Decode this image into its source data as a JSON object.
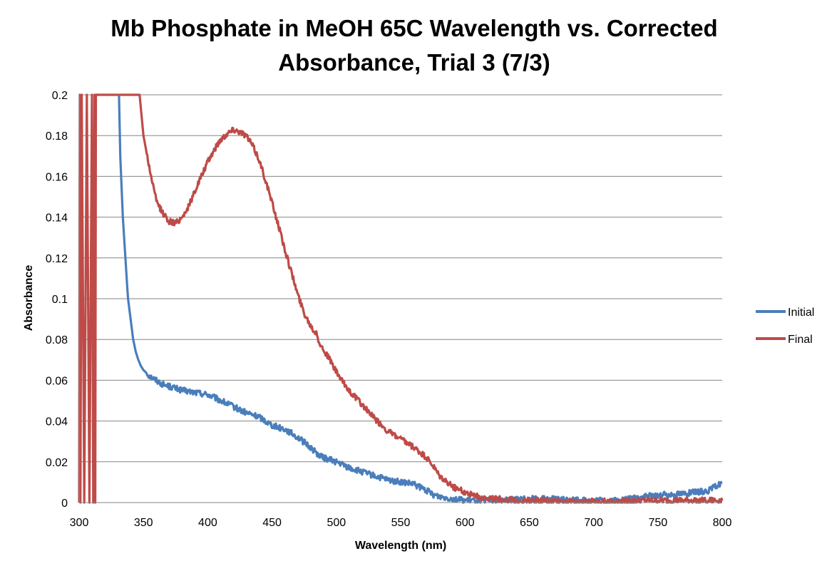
{
  "chart_data": {
    "type": "line",
    "title_lines": [
      "Mb Phosphate in MeOH 65C Wavelength vs. Corrected",
      "Absorbance, Trial 3 (7/3)"
    ],
    "xlabel": "Wavelength (nm)",
    "ylabel": "Absorbance",
    "xlim": [
      300,
      800
    ],
    "ylim": [
      0,
      0.2
    ],
    "x_ticks": [
      300,
      350,
      400,
      450,
      500,
      550,
      600,
      650,
      700,
      750,
      800
    ],
    "x_tick_labels": [
      "300",
      "350",
      "400",
      "450",
      "500",
      "550",
      "600",
      "650",
      "700",
      "750",
      "800"
    ],
    "y_ticks": [
      0,
      0.02,
      0.04,
      0.06,
      0.08,
      0.1,
      0.12,
      0.14,
      0.16,
      0.18,
      0.2
    ],
    "y_tick_labels": [
      "0",
      "0.02",
      "0.04",
      "0.06",
      "0.08",
      "0.1",
      "0.12",
      "0.14",
      "0.16",
      "0.18",
      "0.2"
    ],
    "grid": "horizontal",
    "legend_position": "right",
    "series": [
      {
        "name": "Initial",
        "color": "#4A7EBB",
        "x": [
          331,
          332,
          334,
          336,
          338,
          340,
          342,
          344,
          346,
          348,
          350,
          355,
          360,
          365,
          370,
          375,
          380,
          390,
          400,
          410,
          420,
          430,
          440,
          450,
          460,
          470,
          480,
          487,
          490,
          500,
          510,
          520,
          530,
          540,
          550,
          560,
          570,
          575,
          580,
          590,
          600,
          620,
          650,
          700,
          720,
          740,
          760,
          780,
          790,
          800
        ],
        "y": [
          0.2,
          0.17,
          0.14,
          0.12,
          0.1,
          0.09,
          0.08,
          0.074,
          0.07,
          0.067,
          0.065,
          0.062,
          0.06,
          0.058,
          0.057,
          0.056,
          0.055,
          0.054,
          0.053,
          0.05,
          0.047,
          0.044,
          0.042,
          0.038,
          0.036,
          0.032,
          0.027,
          0.023,
          0.022,
          0.02,
          0.017,
          0.015,
          0.013,
          0.011,
          0.01,
          0.009,
          0.006,
          0.004,
          0.003,
          0.002,
          0.001,
          0.001,
          0.002,
          0.001,
          0.001,
          0.003,
          0.004,
          0.005,
          0.006,
          0.01
        ]
      },
      {
        "name": "Final",
        "color": "#BE4B48",
        "x": [
          300,
          300.5,
          301,
          302,
          304,
          306,
          308,
          310,
          311,
          312,
          312.5,
          313,
          347,
          350,
          355,
          360,
          365,
          370,
          375,
          380,
          385,
          390,
          395,
          400,
          405,
          410,
          415,
          420,
          425,
          430,
          435,
          440,
          445,
          450,
          455,
          460,
          465,
          470,
          475,
          480,
          485,
          486,
          488,
          490,
          495,
          500,
          505,
          510,
          520,
          530,
          540,
          550,
          560,
          570,
          575,
          580,
          590,
          600,
          610,
          620,
          640,
          660,
          680,
          700,
          720,
          740,
          760,
          780,
          800
        ],
        "y": [
          0,
          0.2,
          0,
          0.2,
          0,
          0.2,
          0,
          0.2,
          0,
          0.2,
          0,
          0.2,
          0.2,
          0.18,
          0.163,
          0.148,
          0.142,
          0.138,
          0.137,
          0.14,
          0.145,
          0.153,
          0.16,
          0.167,
          0.173,
          0.178,
          0.181,
          0.183,
          0.182,
          0.18,
          0.175,
          0.168,
          0.158,
          0.147,
          0.136,
          0.124,
          0.113,
          0.102,
          0.093,
          0.087,
          0.082,
          0.08,
          0.077,
          0.075,
          0.07,
          0.064,
          0.059,
          0.055,
          0.048,
          0.041,
          0.035,
          0.031,
          0.027,
          0.022,
          0.018,
          0.013,
          0.008,
          0.005,
          0.003,
          0.002,
          0.001,
          0.001,
          0.0005,
          0.0005,
          0.0005,
          0.001,
          0.001,
          0.001,
          0.001
        ]
      }
    ]
  }
}
